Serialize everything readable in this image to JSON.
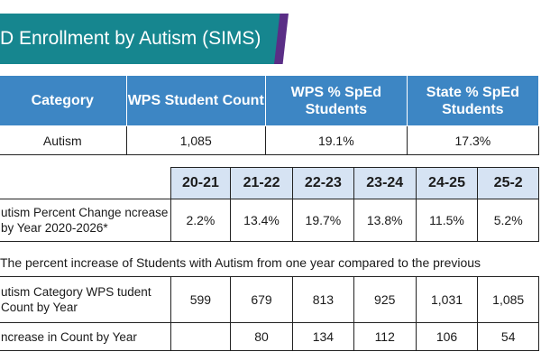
{
  "banner": {
    "title": "D Enrollment by Autism (SIMS)"
  },
  "summary_table": {
    "headers": [
      "Category",
      "WPS Student Count",
      "WPS % SpEd Students",
      "State % SpEd Students"
    ],
    "row": [
      "Autism",
      "1,085",
      "19.1%",
      "17.3%"
    ]
  },
  "yearly_table": {
    "years": [
      "20-21",
      "21-22",
      "22-23",
      "23-24",
      "24-25",
      "25-2"
    ],
    "percent_change": {
      "label": "utism Percent Change ncrease by Year 2020-2026*",
      "values": [
        "2.2%",
        "13.4%",
        "19.7%",
        "13.8%",
        "11.5%",
        "5.2%"
      ]
    },
    "note": "The percent increase of Students with Autism from one year compared to the previous",
    "student_count": {
      "label": "utism Category WPS tudent Count by Year",
      "values": [
        "599",
        "679",
        "813",
        "925",
        "1,031",
        "1,085"
      ]
    },
    "increase": {
      "label": "ncrease in Count by Year",
      "values": [
        "",
        "80",
        "134",
        "112",
        "106",
        "54"
      ]
    }
  },
  "colors": {
    "banner_teal": "#16868f",
    "banner_accent_purple": "#5a2e86",
    "header_blue": "#3d86c4",
    "year_header_light_blue": "#d6e3f3"
  }
}
